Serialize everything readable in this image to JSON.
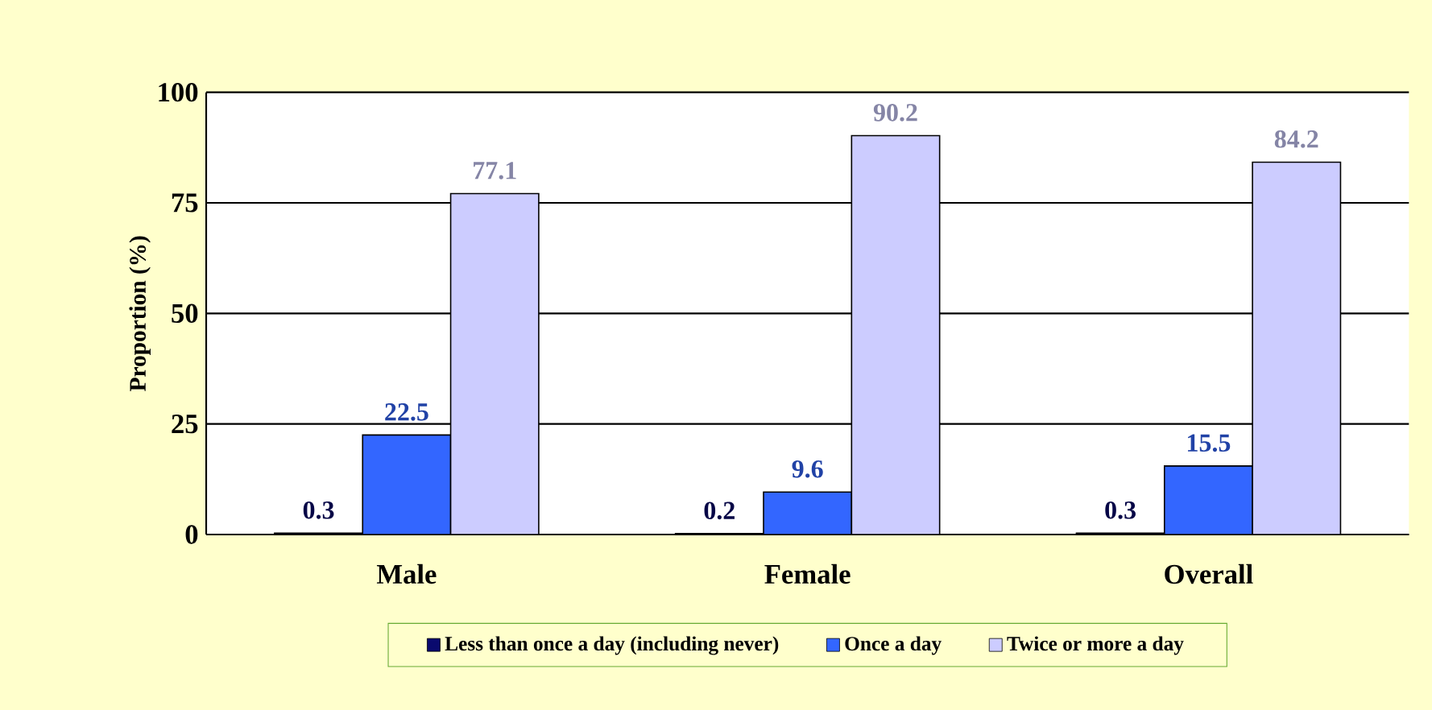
{
  "chart_data": {
    "type": "bar",
    "ylabel": "Proportion (%)",
    "categories": [
      "Male",
      "Female",
      "Overall"
    ],
    "series": [
      {
        "name": "Less than once a day (including never)",
        "color": "#0a0a6e",
        "values": [
          0.3,
          0.2,
          0.3
        ]
      },
      {
        "name": "Once a day",
        "color": "#3366ff",
        "values": [
          22.5,
          9.6,
          15.5
        ]
      },
      {
        "name": "Twice or more a day",
        "color": "#ccccff",
        "values": [
          77.1,
          90.2,
          84.2
        ]
      }
    ],
    "ylim": [
      0,
      100
    ],
    "yticks": [
      0,
      25,
      50,
      75,
      100
    ],
    "grid": "y",
    "legend": "bottom",
    "data_labels": true
  }
}
